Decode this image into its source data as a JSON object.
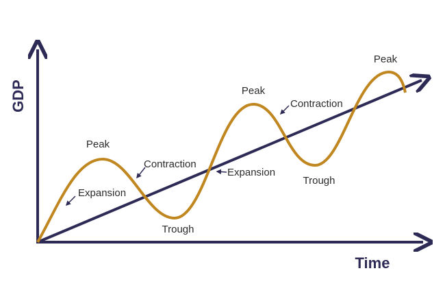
{
  "axes": {
    "y_label": "GDP",
    "x_label": "Time"
  },
  "labels": {
    "peaks": [
      "Peak",
      "Peak",
      "Peak"
    ],
    "troughs": [
      "Trough",
      "Trough"
    ],
    "expansions": [
      "Expansion",
      "Expansion"
    ],
    "contractions": [
      "Contraction",
      "Contraction"
    ]
  }
}
